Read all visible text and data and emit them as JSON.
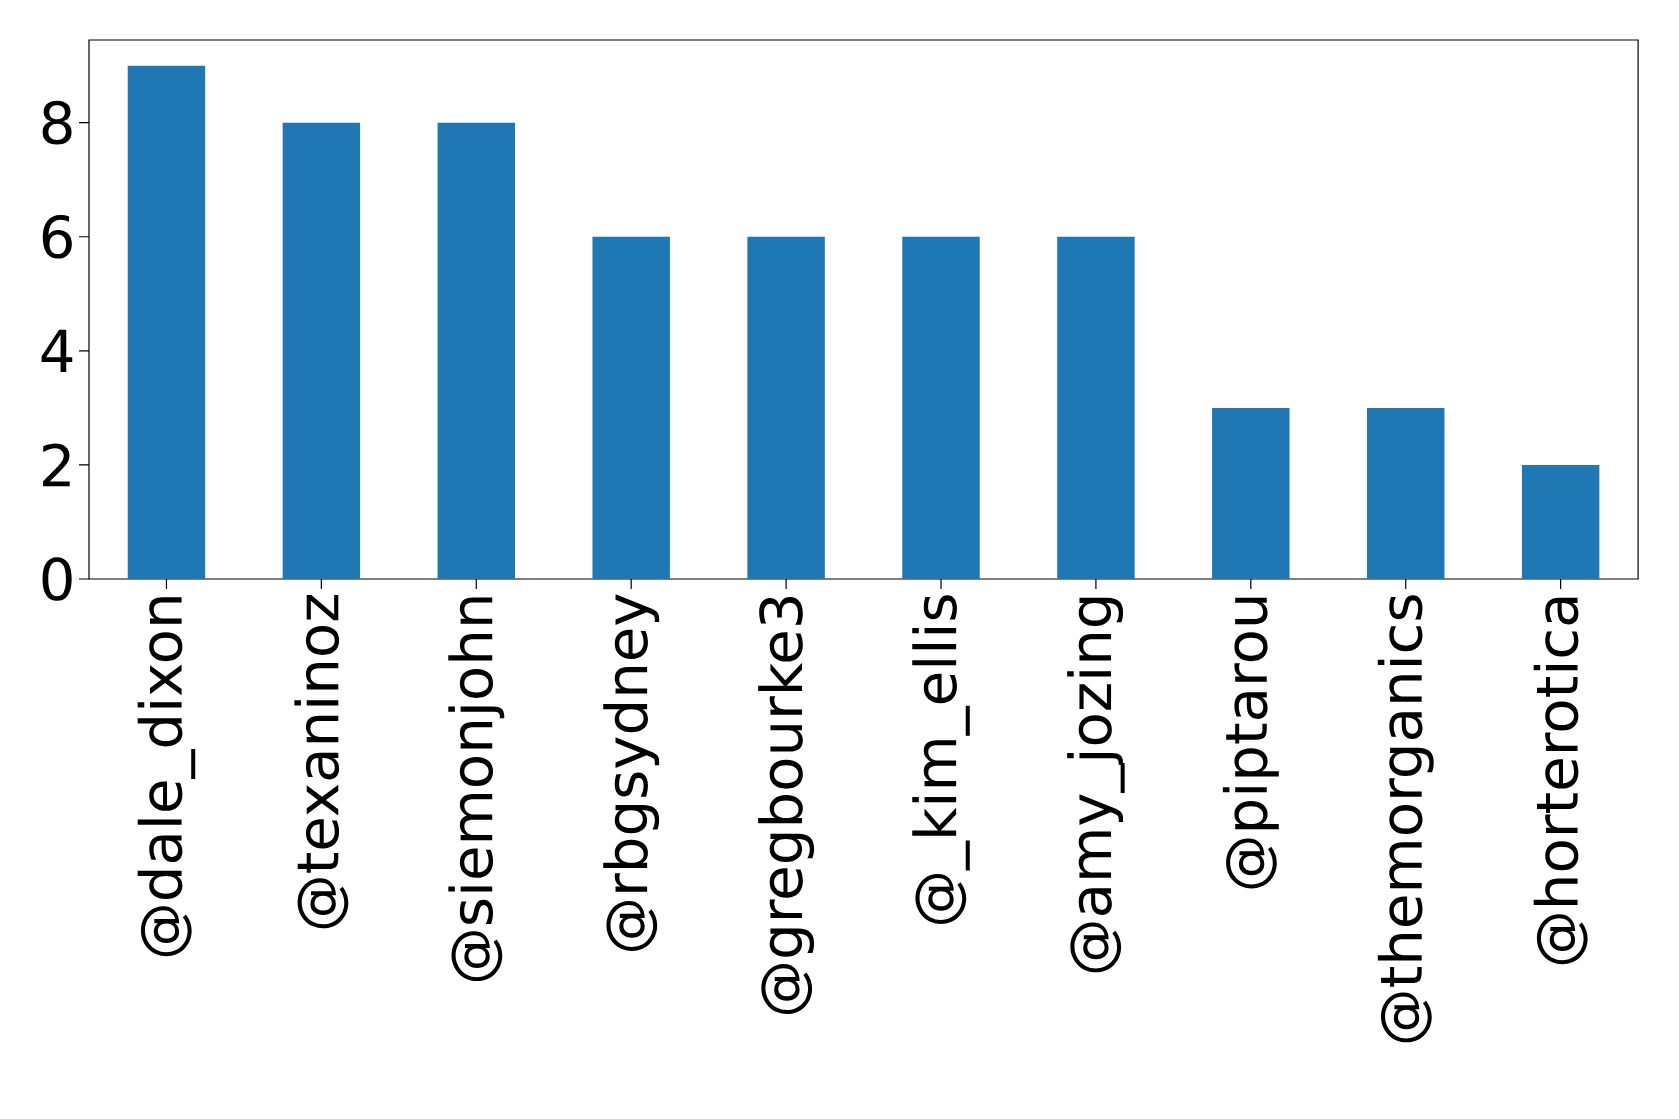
{
  "chart_data": {
    "type": "bar",
    "categories": [
      "@dale_dixon",
      "@texaninoz",
      "@siemonjohn",
      "@rbgsydney",
      "@gregbourke3",
      "@_kim_ellis",
      "@amy_jozing",
      "@piptarou",
      "@themorganics",
      "@horterotica"
    ],
    "values": [
      9,
      8,
      8,
      6,
      6,
      6,
      6,
      3,
      3,
      2
    ],
    "color": "#1f77b4",
    "ylim": [
      0,
      9.45
    ],
    "yticks": [
      0,
      2,
      4,
      6,
      8
    ]
  }
}
